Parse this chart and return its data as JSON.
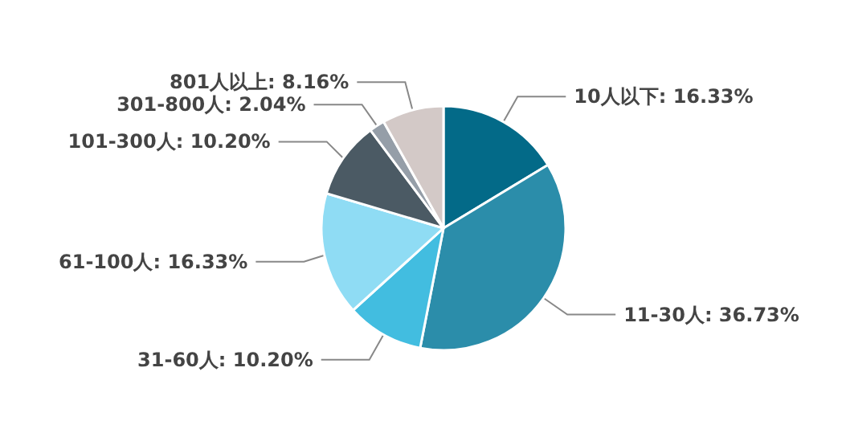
{
  "chart_data": {
    "type": "pie",
    "categories": [
      "10人以下",
      "11-30人",
      "31-60人",
      "61-100人",
      "101-300人",
      "301-800人",
      "801人以上"
    ],
    "values": [
      16.33,
      36.73,
      10.2,
      16.33,
      10.2,
      2.04,
      8.16
    ],
    "value_labels": [
      "16.33%",
      "36.73%",
      "10.20%",
      "16.33%",
      "10.20%",
      "2.04%",
      "8.16%"
    ],
    "colors": [
      "#036a88",
      "#2b8daa",
      "#42bde0",
      "#8fdcf4",
      "#4b5a64",
      "#959ea8",
      "#d3c9c7"
    ],
    "legend": false
  }
}
